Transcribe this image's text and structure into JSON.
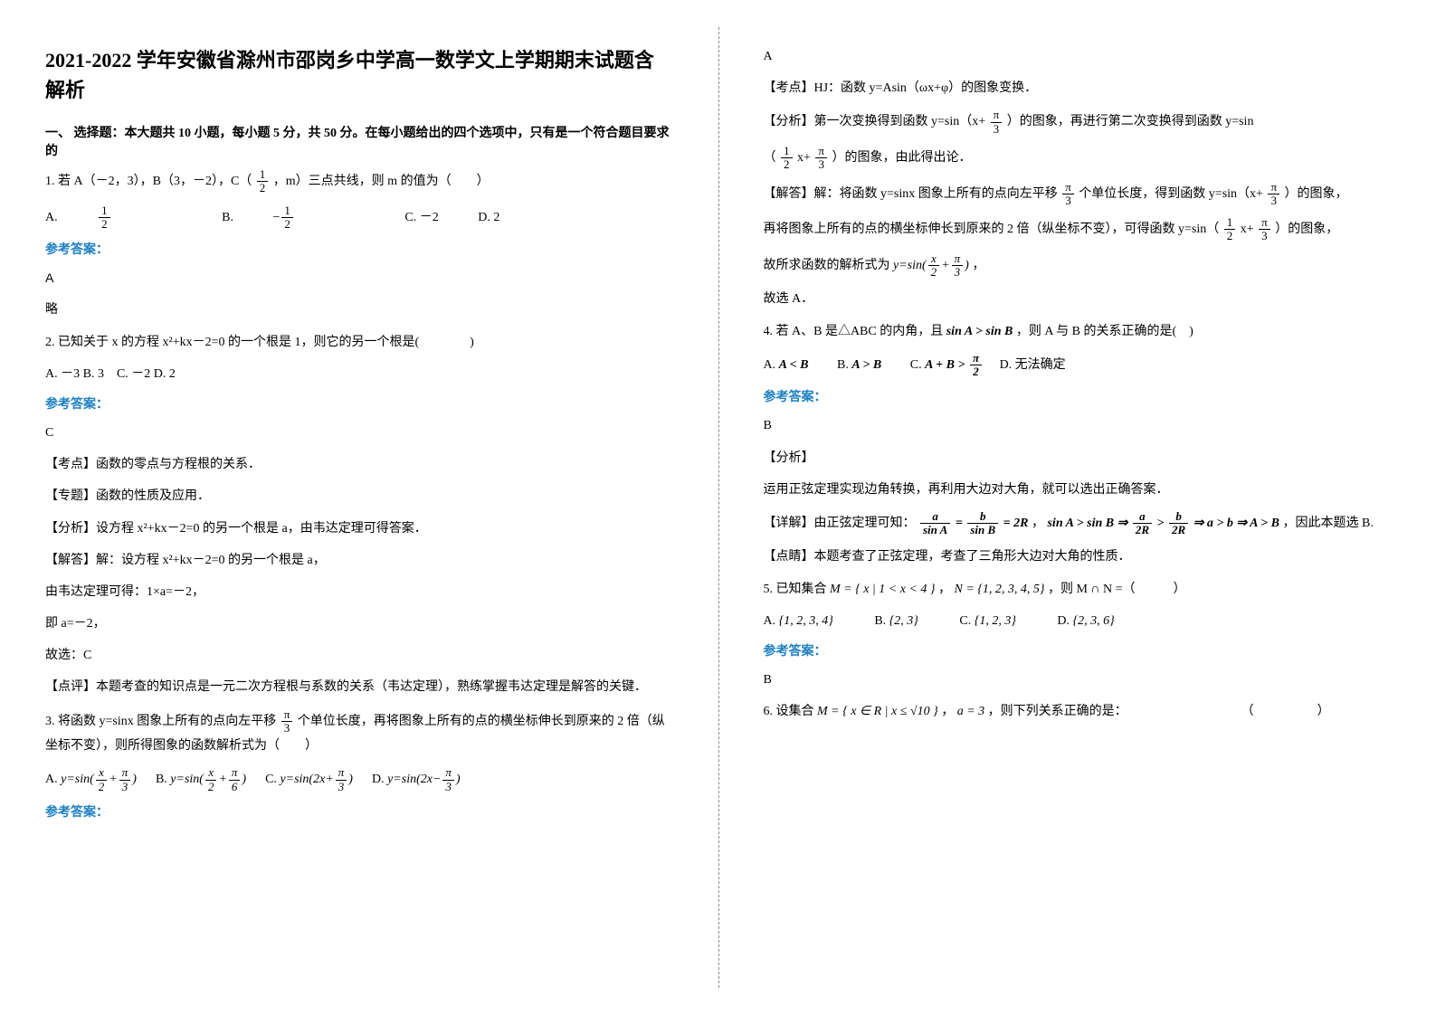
{
  "title": "2021-2022 学年安徽省滁州市邵岗乡中学高一数学文上学期期末试题含解析",
  "section1": "一、 选择题：本大题共 10 小题，每小题 5 分，共 50 分。在每小题给出的四个选项中，只有是一个符合题目要求的",
  "q1_stem_a": "1. 若 A（－2，3），B（3，－2），C（",
  "q1_stem_b": "，m）三点共线，则 m 的值为（　　）",
  "q1_A": "A.",
  "q1_B": "B.",
  "q1_C": "C. －2",
  "q1_D": "D. 2",
  "q1_ans_label": "参考答案：",
  "q1_ans": "A",
  "q1_note": "略",
  "q2_stem": "2. 已知关于 x 的方程 x²+kx－2=0 的一个根是 1，则它的另一个根是(　　　　)",
  "q2_opts": "A. －3 B. 3　C. －2 D. 2",
  "q2_ans_label": "参考答案：",
  "q2_ans": "C",
  "q2_l1": "【考点】函数的零点与方程根的关系．",
  "q2_l2": "【专题】函数的性质及应用．",
  "q2_l3": "【分析】设方程 x²+kx－2=0 的另一个根是 a，由韦达定理可得答案．",
  "q2_l4": "【解答】解：设方程 x²+kx－2=0 的另一个根是 a，",
  "q2_l5": "由韦达定理可得：1×a=－2，",
  "q2_l6": "即 a=－2，",
  "q2_l7": "故选：C",
  "q2_l8": "【点评】本题考查的知识点是一元二次方程根与系数的关系（韦达定理），熟练掌握韦达定理是解答的关键．",
  "q3_stem_a": "3. 将函数 y=sinx 图象上所有的点向左平移",
  "q3_stem_b": "个单位长度，再将图象上所有的点的横坐标伸长到原来的 2 倍（纵坐标不变），则所得图象的函数解析式为（　　）",
  "q3_A_pre": "A.",
  "q3_B_pre": "B.",
  "q3_C_pre": "C.",
  "q3_D_pre": "D.",
  "q3_ans_label": "参考答案：",
  "q3r_ans": "A",
  "q3r_l1": "【考点】HJ：函数 y=Asin（ωx+φ）的图象变换．",
  "q3r_l2a": "【分析】第一次变换得到函数 y=sin（x+",
  "q3r_l2b": "）的图象，再进行第二次变换得到函数 y=sin",
  "q3r_l2c_a": "（",
  "q3r_l2c_b": "x+",
  "q3r_l2c_c": "）的图象，由此得出论．",
  "q3r_l3a": "【解答】解：将函数 y=sinx 图象上所有的点向左平移",
  "q3r_l3b": "个单位长度，得到函数 y=sin（x+",
  "q3r_l3c": "）的图象，",
  "q3r_l4a": "再将图象上所有的点的横坐标伸长到原来的 2 倍（纵坐标不变），可得函数 y=sin（",
  "q3r_l4b": "x+",
  "q3r_l4c": "）的图象，",
  "q3r_l5a": "故所求函数的解析式为",
  "q3r_l5b": "，",
  "q3r_l6": "故选 A．",
  "q4_stem_a": "4. 若 A、B 是△ABC 的内角，且",
  "q4_sinexpr": "sin A > sin B",
  "q4_stem_b": "，则 A 与 B 的关系正确的是(　)",
  "q4_A": "A.",
  "q4_A_expr": "A < B",
  "q4_B": "B.",
  "q4_B_expr": "A > B",
  "q4_C": "C.",
  "q4_C_expr_a": "A + B >",
  "q4_C_expr_b": "",
  "q4_D": "D. 无法确定",
  "q4_ans_label": "参考答案：",
  "q4_ans": "B",
  "q4_l1": "【分析】",
  "q4_l2": "运用正弦定理实现边角转换，再利用大边对大角，就可以选出正确答案．",
  "q4_l3a": "【详解】由正弦定理可知：",
  "q4_l3b": "，",
  "q4_l3c": "，因此本题选 B.",
  "q4_l4": "【点睛】本题考查了正弦定理，考查了三角形大边对大角的性质．",
  "q5_stem_a": "5. 已知集合",
  "q5_M": "M = { x | 1 < x < 4 }",
  "q5_comma1": "，",
  "q5_N": "N = {1, 2, 3, 4, 5}",
  "q5_stem_b": "，则 M ∩ N =（　　　）",
  "q5_A": "A.",
  "q5_Av": "{1, 2, 3, 4}",
  "q5_B": "B.",
  "q5_Bv": "{2, 3}",
  "q5_C": "C.",
  "q5_Cv": "{1, 2, 3}",
  "q5_D": "D.",
  "q5_Dv": "{2, 3, 6}",
  "q5_ans_label": "参考答案：",
  "q5_ans": "B",
  "q6_stem_a": "6. 设集合",
  "q6_M": "M = { x ∈ R | x ≤ √10 }",
  "q6_comma": "，",
  "q6_a": "a = 3",
  "q6_stem_b": "，则下列关系正确的是：　　　　　　　　　　（　　　　　）",
  "f_half_n": "1",
  "f_half_d": "2",
  "f_neg_half_n": "1",
  "f_neg_half_d": "2",
  "f_pi3_n": "π",
  "f_pi3_d": "3",
  "f_pi6_n": "π",
  "f_pi6_d": "6",
  "f_x2_n": "x",
  "f_x2_d": "2",
  "f_pi2_n": "π",
  "f_pi2_d": "2",
  "f_a_sinA_n": "a",
  "f_a_sinA_d": "sin A",
  "f_b_sinB_n": "b",
  "f_b_sinB_d": "sin B",
  "f_a_2R_n": "a",
  "f_a_2R_d": "2R",
  "f_b_2R_n": "b",
  "f_b_2R_d": "2R",
  "eq2R": "= 2R",
  "impl": "⇒",
  "gt": ">",
  "sinAsinB": "sin A > sin B",
  "ab": "a > b",
  "AB": "A > B",
  "yA_a": "y=sin(",
  "yA_b": "+",
  "yA_c": ")",
  "yB_a": "y=sin(",
  "yB_b": "+",
  "yB_c": ")",
  "yC": "y=sin(2x+",
  "yC_b": ")",
  "yD": "y=sin(2x−",
  "yD_b": ")"
}
